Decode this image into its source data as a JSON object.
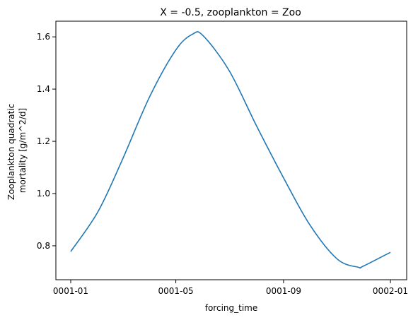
{
  "chart_data": {
    "type": "line",
    "title": "X = -0.5, zooplankton = Zoo",
    "xlabel": "forcing_time",
    "ylabel_lines": [
      "Zooplankton quadratic",
      "mortality [g/m^2/d]"
    ],
    "x_ticks": [
      "0001-01",
      "0001-05",
      "0001-09",
      "0002-01"
    ],
    "y_ticks": [
      "0.8",
      "1.0",
      "1.2",
      "1.4",
      "1.6"
    ],
    "xlim": [
      "0001-01-01",
      "0002-01-01"
    ],
    "ylim": [
      0.67,
      1.66
    ],
    "grid": false,
    "series": [
      {
        "color": "#1f77b4",
        "x": [
          "0001-01-01",
          "0001-02-01",
          "0001-03-01",
          "0001-04-01",
          "0001-05-01",
          "0001-05-20",
          "0001-06-01",
          "0001-07-01",
          "0001-08-01",
          "0001-09-01",
          "0001-10-01",
          "0001-11-01",
          "0001-11-25",
          "0001-12-01",
          "0002-01-01"
        ],
        "values": [
          0.778,
          0.93,
          1.13,
          1.37,
          1.55,
          1.61,
          1.605,
          1.47,
          1.26,
          1.06,
          0.88,
          0.75,
          0.718,
          0.722,
          0.775
        ]
      }
    ]
  },
  "colors": {
    "line": "#1f77b4",
    "axes": "#000000",
    "background": "#ffffff"
  }
}
